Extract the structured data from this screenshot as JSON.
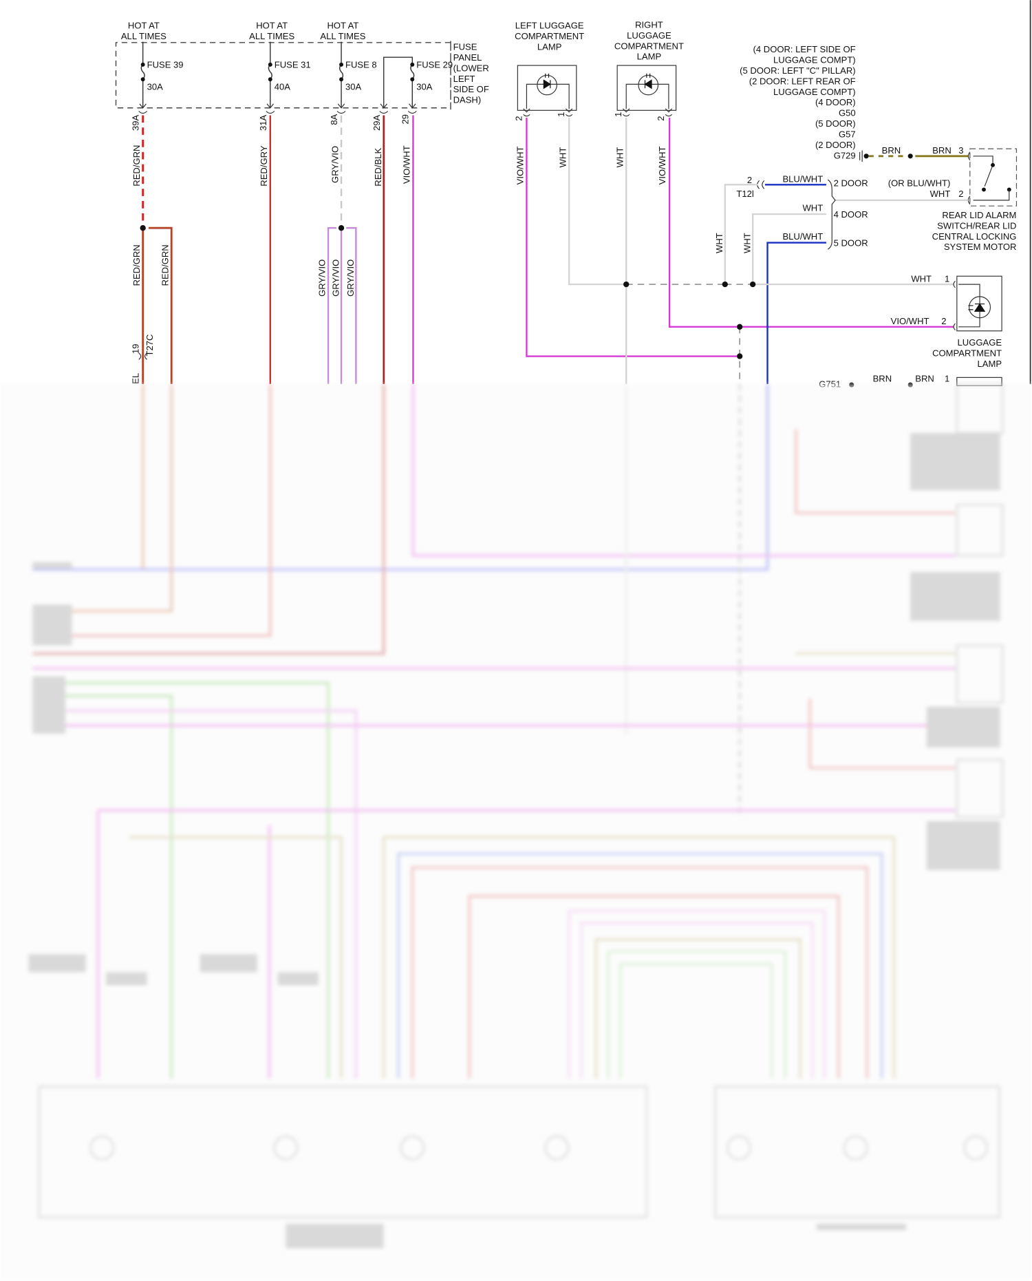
{
  "colors": {
    "red_grn": "#c0392b",
    "red_grn_branch": "#b5542a",
    "red_gry": "#d42a2a",
    "red_blk": "#b01e1e",
    "vio_wht": "#d63ad6",
    "gry_vio": "#c58ad8",
    "gry": "#c8c8c8",
    "wht": "#d4d4d4",
    "blu_wht": "#1a2fc4",
    "brn": "#8a7a1e",
    "green": "#7ccf6a",
    "tan": "#c9b98a"
  },
  "fuse_panel": {
    "label_lines": [
      "FUSE",
      "PANEL",
      "(LOWER",
      "LEFT",
      "SIDE OF",
      "DASH)"
    ],
    "fuses": [
      {
        "hot": [
          "HOT AT",
          "ALL TIMES"
        ],
        "name": "FUSE 39",
        "rating": "30A",
        "connector": "39A",
        "wire": "RED/GRN"
      },
      {
        "hot": [
          "HOT AT",
          "ALL TIMES"
        ],
        "name": "FUSE 31",
        "rating": "40A",
        "connector": "31A",
        "wire": "RED/GRY"
      },
      {
        "hot": [
          "HOT AT",
          "ALL TIMES"
        ],
        "name": "FUSE 8",
        "rating": "30A",
        "connector": "8A",
        "wire": "GRY/VIO"
      },
      {
        "name": "FUSE 29",
        "rating": "30A",
        "connectors": [
          "29A",
          "29"
        ],
        "wires": [
          "RED/BLK",
          "VIO/WHT"
        ]
      }
    ]
  },
  "left_branch": {
    "wires": [
      "RED/GRN",
      "RED/GRN"
    ],
    "connector_pin": "19",
    "connector": "T27C",
    "cut_label": "EL",
    "gry_vio_wires": [
      "GRY/VIO",
      "GRY/VIO",
      "GRY/VIO"
    ]
  },
  "left_lamp": {
    "title": [
      "LEFT LUGGAGE",
      "COMPARTMENT",
      "LAMP"
    ],
    "pins": [
      "2",
      "1"
    ],
    "wires": [
      "VIO/WHT",
      "WHT"
    ]
  },
  "right_lamp": {
    "title": [
      "RIGHT",
      "LUGGAGE",
      "COMPARTMENT",
      "LAMP"
    ],
    "pins": [
      "1",
      "2"
    ],
    "wires": [
      "WHT",
      "VIO/WHT"
    ]
  },
  "ground": {
    "lines": [
      "(4 DOOR: LEFT SIDE OF",
      "LUGGAGE COMPT)",
      "(5 DOOR: LEFT \"C\" PILLAR)",
      "(2 DOOR: LEFT REAR OF",
      "LUGGAGE COMPT)",
      "(4 DOOR)",
      "G50",
      "(5 DOOR)",
      "G57",
      "(2 DOOR)",
      "G729"
    ],
    "wires": [
      "BRN",
      "BRN"
    ],
    "pin": "3"
  },
  "rear_lid_switch": {
    "title": [
      "REAR LID ALARM",
      "SWITCH/REAR LID",
      "CENTRAL LOCKING",
      "SYSTEM MOTOR"
    ],
    "alt_wire": "(OR BLU/WHT)",
    "wire": "WHT",
    "pin": "2"
  },
  "door_variants": {
    "connector_pin": "2",
    "connector": "T12l",
    "rows": [
      {
        "wire": "BLU/WHT",
        "label": "2 DOOR"
      },
      {
        "wire": "WHT",
        "label": "4 DOOR"
      },
      {
        "wire": "BLU/WHT",
        "label": "5 DOOR"
      }
    ],
    "vertical_wires": [
      "WHT",
      "WHT"
    ]
  },
  "luggage_lamp": {
    "title": [
      "LUGGAGE",
      "COMPARTMENT",
      "LAMP"
    ],
    "pins": [
      {
        "pin": "1",
        "wire": "WHT"
      },
      {
        "pin": "2",
        "wire": "VIO/WHT"
      }
    ]
  },
  "lower_ground": {
    "label": "G751",
    "wires": [
      "BRN",
      "BRN"
    ],
    "pin": "1"
  }
}
